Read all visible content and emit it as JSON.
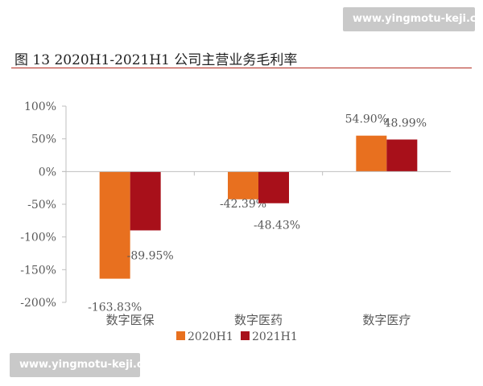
{
  "watermarks": {
    "top": "www.yingmotu-keji.com",
    "bottom": "www.yingmotu-keji.com"
  },
  "chart_data": {
    "type": "bar",
    "title": "图  13 2020H1-2021H1 公司主营业务毛利率",
    "categories": [
      "数字医保",
      "数字医药",
      "数字医疗"
    ],
    "series": [
      {
        "name": "2020H1",
        "values": [
          -163.83,
          -42.39,
          54.9
        ],
        "labels": [
          "-163.83%",
          "-42.39%",
          "54.90%"
        ],
        "color": "#e8701f"
      },
      {
        "name": "2021H1",
        "values": [
          -89.95,
          -48.43,
          48.99
        ],
        "labels": [
          "-89.95%",
          "-48.43%",
          "48.99%"
        ],
        "color": "#a8101a"
      }
    ],
    "ylim": [
      -200,
      100
    ],
    "yticks": [
      100,
      50,
      0,
      -50,
      -100,
      -150,
      -200
    ],
    "ytick_labels": [
      "100%",
      "50%",
      "0%",
      "-50%",
      "-100%",
      "-150%",
      "-200%"
    ],
    "grid": false,
    "legend_position": "bottom",
    "colors": {
      "axis": "#bfbfbf",
      "text": "#595959",
      "title_rule": "#b22a1e"
    }
  }
}
